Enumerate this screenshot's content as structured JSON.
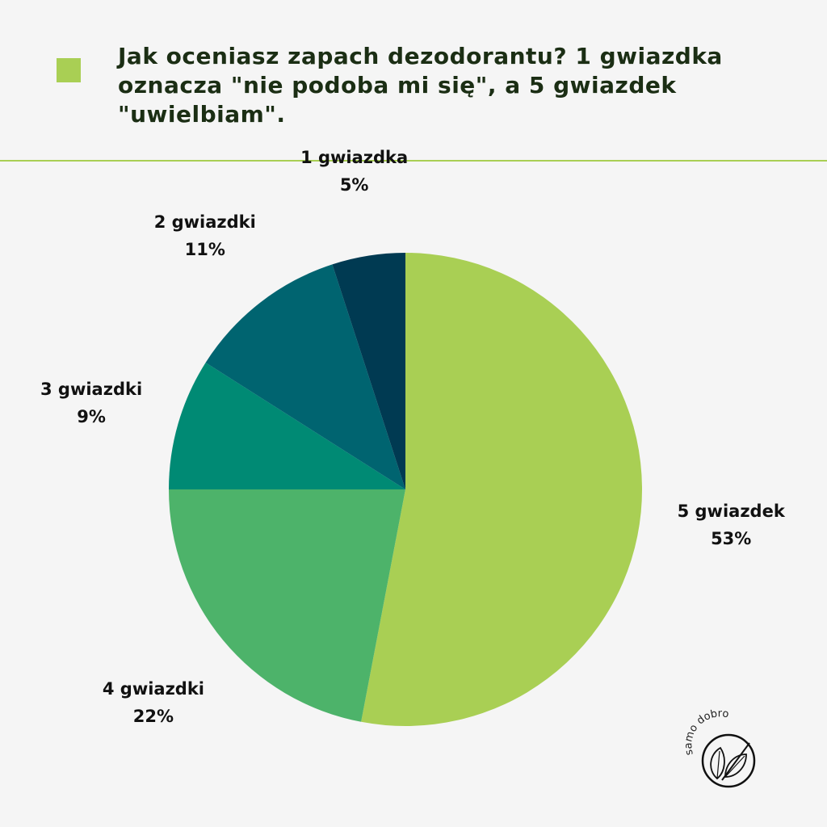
{
  "title": "Jak oceniasz zapach dezodorantu? 1 gwiazdka oznacza \"nie podoba mi się\", a 5 gwiazdek \"uwielbiam\".",
  "colors": {
    "background": "#f5f5f5",
    "accent": "#a9cf54",
    "divider": "#a9cf54"
  },
  "chart_data": {
    "type": "pie",
    "title": "Jak oceniasz zapach dezodorantu? 1 gwiazdka oznacza \"nie podoba mi się\", a 5 gwiazdek \"uwielbiam\".",
    "start_angle": "12 o'clock",
    "direction": "clockwise",
    "slices": [
      {
        "label": "5 gwiazdek",
        "value": 53,
        "display": "53%",
        "color": "#a9cf54"
      },
      {
        "label": "4 gwiazdki",
        "value": 22,
        "display": "22%",
        "color": "#4db36a"
      },
      {
        "label": "3 gwiazdki",
        "value": 9,
        "display": "9%",
        "color": "#008a74"
      },
      {
        "label": "2 gwiazdki",
        "value": 11,
        "display": "11%",
        "color": "#006470"
      },
      {
        "label": "1 gwiazdka",
        "value": 5,
        "display": "5%",
        "color": "#003a52"
      }
    ]
  },
  "logo": {
    "text": "samo dobro",
    "icon": "leaf-logo-icon"
  }
}
